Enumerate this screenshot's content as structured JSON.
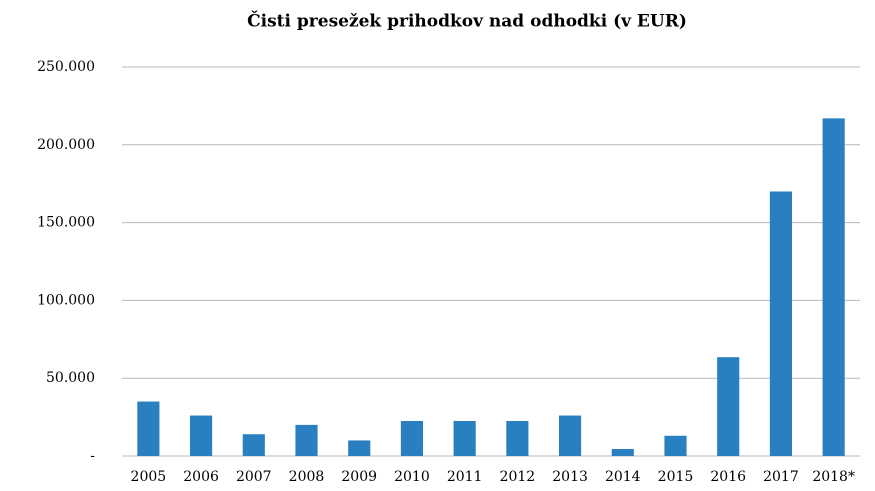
{
  "chart_data": {
    "type": "bar",
    "title": "Čisti presežek prihodkov nad odhodki (v EUR)",
    "categories": [
      "2005",
      "2006",
      "2007",
      "2008",
      "2009",
      "2010",
      "2011",
      "2012",
      "2013",
      "2014",
      "2015",
      "2016",
      "2017",
      "2018*"
    ],
    "values": [
      35000,
      26000,
      14000,
      20000,
      10000,
      22500,
      22500,
      22500,
      26000,
      4500,
      13000,
      63500,
      170000,
      217000
    ],
    "color": "#2a7fc1",
    "ylim": [
      0,
      250000
    ],
    "yticks": [
      {
        "value": 0,
        "label": "-"
      },
      {
        "value": 50000,
        "label": "50.000"
      },
      {
        "value": 100000,
        "label": "100.000"
      },
      {
        "value": 150000,
        "label": "150.000"
      },
      {
        "value": 200000,
        "label": "200.000"
      },
      {
        "value": 250000,
        "label": "250.000"
      }
    ],
    "grid": true
  }
}
